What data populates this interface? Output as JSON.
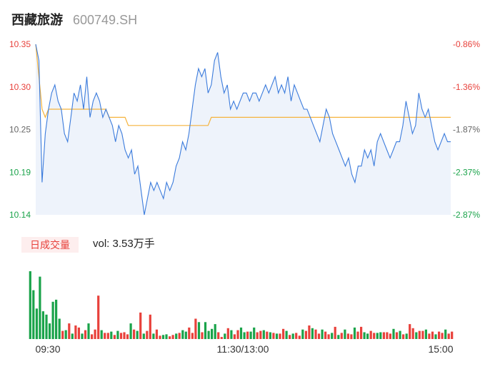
{
  "header": {
    "name": "西藏旅游",
    "code": "600749.SH"
  },
  "volume_panel": {
    "badge": "日成交量",
    "label": "vol: 3.53万手"
  },
  "colors": {
    "up": "#e8413b",
    "down": "#1aa34a",
    "price_line": "#3b7bdc",
    "avg_line": "#f5b33c",
    "area": "#eef3fb"
  },
  "chart_data": [
    {
      "type": "line",
      "title": "",
      "y_left_ticks": [
        "10.35",
        "10.30",
        "10.25",
        "10.19",
        "10.14"
      ],
      "y_right_ticks": [
        "-0.86%",
        "-1.36%",
        "-1.87%",
        "-2.37%",
        "-2.87%"
      ],
      "ylim": [
        10.14,
        10.35
      ],
      "x_ticks": [
        "09:30",
        "11:30/13:00",
        "15:00"
      ],
      "series": [
        {
          "role": "price",
          "values": [
            10.35,
            10.33,
            10.18,
            10.24,
            10.27,
            10.29,
            10.3,
            10.28,
            10.27,
            10.24,
            10.23,
            10.26,
            10.29,
            10.28,
            10.3,
            10.27,
            10.31,
            10.26,
            10.28,
            10.29,
            10.28,
            10.26,
            10.27,
            10.26,
            10.25,
            10.23,
            10.25,
            10.24,
            10.22,
            10.21,
            10.22,
            10.19,
            10.2,
            10.17,
            10.14,
            10.16,
            10.18,
            10.17,
            10.18,
            10.17,
            10.16,
            10.18,
            10.17,
            10.18,
            10.2,
            10.21,
            10.23,
            10.22,
            10.24,
            10.27,
            10.3,
            10.32,
            10.31,
            10.32,
            10.29,
            10.3,
            10.33,
            10.34,
            10.31,
            10.29,
            10.3,
            10.27,
            10.28,
            10.27,
            10.28,
            10.29,
            10.29,
            10.28,
            10.29,
            10.29,
            10.28,
            10.29,
            10.3,
            10.29,
            10.3,
            10.31,
            10.29,
            10.3,
            10.29,
            10.31,
            10.28,
            10.3,
            10.29,
            10.28,
            10.27,
            10.27,
            10.26,
            10.25,
            10.24,
            10.23,
            10.25,
            10.27,
            10.26,
            10.24,
            10.23,
            10.22,
            10.21,
            10.2,
            10.21,
            10.19,
            10.18,
            10.2,
            10.2,
            10.22,
            10.21,
            10.22,
            10.2,
            10.23,
            10.24,
            10.23,
            10.22,
            10.21,
            10.22,
            10.23,
            10.23,
            10.25,
            10.28,
            10.26,
            10.24,
            10.25,
            10.29,
            10.27,
            10.26,
            10.27,
            10.25,
            10.23,
            10.22,
            10.23,
            10.24,
            10.23,
            10.23
          ]
        },
        {
          "role": "average",
          "values": [
            10.35,
            10.31,
            10.27,
            10.26,
            10.27,
            10.27,
            10.27,
            10.27,
            10.27,
            10.27,
            10.27,
            10.27,
            10.27,
            10.27,
            10.27,
            10.27,
            10.27,
            10.27,
            10.27,
            10.27,
            10.27,
            10.27,
            10.27,
            10.26,
            10.26,
            10.26,
            10.26,
            10.26,
            10.26,
            10.25,
            10.25,
            10.25,
            10.25,
            10.25,
            10.25,
            10.25,
            10.25,
            10.25,
            10.25,
            10.25,
            10.25,
            10.25,
            10.25,
            10.25,
            10.25,
            10.25,
            10.25,
            10.25,
            10.25,
            10.25,
            10.25,
            10.25,
            10.25,
            10.25,
            10.25,
            10.26,
            10.26,
            10.26,
            10.26,
            10.26,
            10.26,
            10.26,
            10.26,
            10.26,
            10.26,
            10.26,
            10.26,
            10.26,
            10.26,
            10.26,
            10.26,
            10.26,
            10.26,
            10.26,
            10.26,
            10.26,
            10.26,
            10.26,
            10.26,
            10.26,
            10.26,
            10.26,
            10.26,
            10.26,
            10.26,
            10.26,
            10.26,
            10.26,
            10.26,
            10.26,
            10.26,
            10.26,
            10.26,
            10.26,
            10.26,
            10.26,
            10.26,
            10.26,
            10.26,
            10.26,
            10.26,
            10.26,
            10.26,
            10.26,
            10.26,
            10.26,
            10.26,
            10.26,
            10.26,
            10.26,
            10.26,
            10.26,
            10.26,
            10.26,
            10.26,
            10.26,
            10.26,
            10.26,
            10.26,
            10.26,
            10.26,
            10.26,
            10.26,
            10.26,
            10.26,
            10.26,
            10.26,
            10.26,
            10.26,
            10.26,
            10.26
          ]
        }
      ]
    },
    {
      "type": "bar",
      "title": "",
      "ylim": [
        0,
        100
      ],
      "volumes": [
        100,
        72,
        45,
        92,
        41,
        36,
        23,
        55,
        58,
        30,
        12,
        13,
        23,
        8,
        20,
        17,
        8,
        13,
        23,
        7,
        14,
        64,
        13,
        9,
        9,
        11,
        6,
        12,
        9,
        10,
        7,
        23,
        14,
        12,
        39,
        8,
        12,
        36,
        8,
        14,
        5,
        6,
        7,
        4,
        6,
        8,
        9,
        13,
        11,
        17,
        9,
        30,
        25,
        10,
        25,
        12,
        15,
        22,
        10,
        3,
        8,
        16,
        13,
        7,
        13,
        17,
        10,
        11,
        11,
        17,
        10,
        12,
        13,
        11,
        10,
        9,
        8,
        8,
        15,
        12,
        6,
        8,
        9,
        5,
        14,
        12,
        20,
        16,
        14,
        8,
        14,
        11,
        7,
        9,
        18,
        6,
        9,
        14,
        8,
        7,
        17,
        11,
        18,
        10,
        8,
        12,
        9,
        9,
        10,
        10,
        10,
        8,
        15,
        10,
        12,
        7,
        8,
        22,
        16,
        10,
        12,
        12,
        14,
        8,
        11,
        7,
        11,
        9,
        14,
        8,
        11
      ],
      "up_down": [
        "d",
        "d",
        "d",
        "d",
        "d",
        "d",
        "d",
        "d",
        "d",
        "d",
        "u",
        "d",
        "u",
        "d",
        "u",
        "u",
        "d",
        "u",
        "d",
        "u",
        "u",
        "u",
        "d",
        "u",
        "u",
        "d",
        "u",
        "d",
        "u",
        "u",
        "u",
        "d",
        "u",
        "d",
        "u",
        "d",
        "u",
        "u",
        "d",
        "u",
        "u",
        "d",
        "d",
        "u",
        "u",
        "d",
        "u",
        "d",
        "d",
        "u",
        "u",
        "u",
        "d",
        "u",
        "d",
        "d",
        "d",
        "d",
        "u",
        "u",
        "d",
        "u",
        "d",
        "u",
        "u",
        "d",
        "d",
        "u",
        "d",
        "d",
        "u",
        "u",
        "d",
        "u",
        "d",
        "u",
        "d",
        "u",
        "u",
        "d",
        "u",
        "d",
        "u",
        "u",
        "d",
        "u",
        "u",
        "d",
        "u",
        "u",
        "d",
        "u",
        "u",
        "d",
        "u",
        "d",
        "u",
        "d",
        "u",
        "u",
        "d",
        "u",
        "u",
        "d",
        "d",
        "u",
        "u",
        "d",
        "d",
        "u",
        "u",
        "u",
        "d",
        "u",
        "d",
        "u",
        "d",
        "u",
        "u",
        "d",
        "u",
        "u",
        "d",
        "u",
        "u",
        "d",
        "u",
        "u",
        "d",
        "u",
        "u"
      ]
    }
  ]
}
